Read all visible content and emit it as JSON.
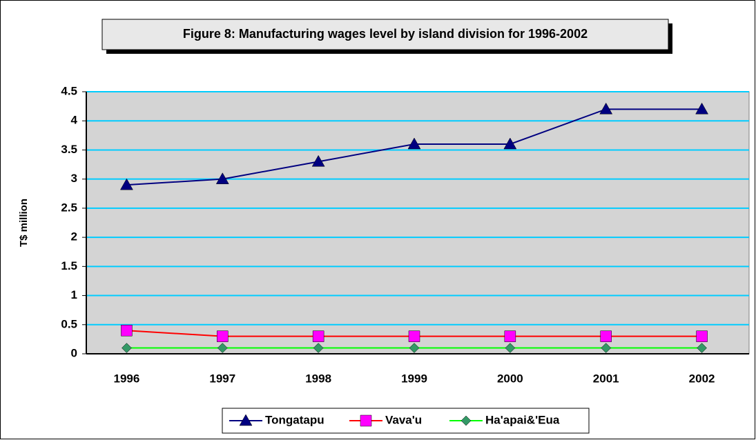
{
  "chart_data": {
    "type": "line",
    "title": "Figure 8: Manufacturing wages level by island division for 1996-2002",
    "y_label": "T$ million",
    "categories": [
      "1996",
      "1997",
      "1998",
      "1999",
      "2000",
      "2001",
      "2002"
    ],
    "series": [
      {
        "name": "Tongatapu",
        "color": "#000080",
        "marker": "triangle",
        "marker_color": "#000080",
        "values": [
          2.9,
          3.0,
          3.3,
          3.6,
          3.6,
          4.2,
          4.2
        ]
      },
      {
        "name": "Vava'u",
        "color": "#ff0000",
        "marker": "square",
        "marker_color": "#ff00ff",
        "values": [
          0.4,
          0.3,
          0.3,
          0.3,
          0.3,
          0.3,
          0.3
        ]
      },
      {
        "name": "Ha'apai&'Eua",
        "color": "#00ff00",
        "marker": "diamond",
        "marker_color": "#339966",
        "values": [
          0.1,
          0.1,
          0.1,
          0.1,
          0.1,
          0.1,
          0.1
        ]
      }
    ],
    "ylim": [
      0,
      4.5
    ],
    "yticks": [
      0,
      0.5,
      1,
      1.5,
      2,
      2.5,
      3,
      3.5,
      4,
      4.5
    ],
    "grid": true,
    "grid_color": "#00ccff",
    "legend": "bottom"
  }
}
